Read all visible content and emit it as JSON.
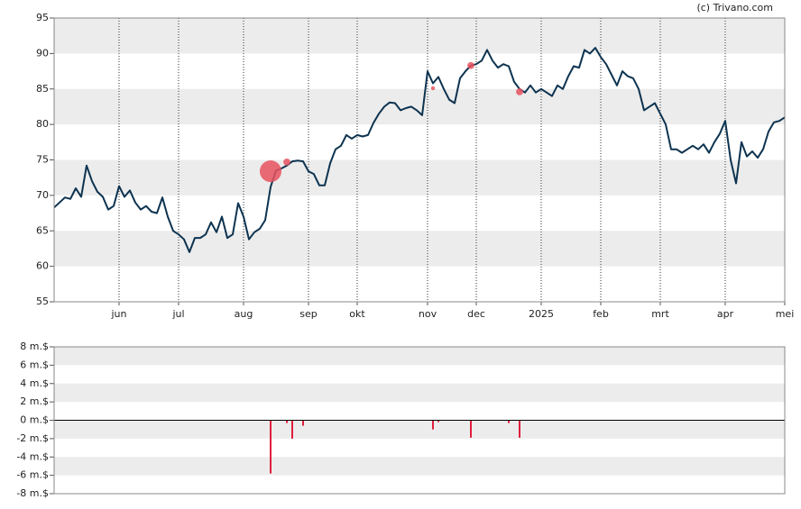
{
  "watermark": "(c) Trivano.com",
  "chart_data": [
    {
      "type": "line",
      "color": "#0d3350",
      "ylim": [
        55,
        95
      ],
      "yticks": [
        55,
        60,
        65,
        70,
        75,
        80,
        85,
        90,
        95
      ],
      "bands": true,
      "categories": [
        null,
        null,
        null,
        null,
        null,
        null,
        null,
        null,
        null,
        null,
        null,
        null,
        "jun",
        null,
        null,
        null,
        null,
        null,
        null,
        null,
        null,
        null,
        null,
        "jul",
        null,
        null,
        null,
        null,
        null,
        null,
        null,
        null,
        null,
        null,
        null,
        "aug",
        null,
        null,
        null,
        null,
        null,
        null,
        null,
        null,
        null,
        null,
        null,
        "sep",
        null,
        null,
        null,
        null,
        null,
        null,
        null,
        null,
        "okt",
        null,
        null,
        null,
        null,
        null,
        null,
        null,
        null,
        null,
        null,
        null,
        null,
        "nov",
        null,
        null,
        null,
        null,
        null,
        null,
        null,
        null,
        "dec",
        null,
        null,
        null,
        null,
        null,
        null,
        null,
        null,
        null,
        null,
        null,
        "2025",
        null,
        null,
        null,
        null,
        null,
        null,
        null,
        null,
        null,
        null,
        "feb",
        null,
        null,
        null,
        null,
        null,
        null,
        null,
        null,
        null,
        null,
        "mrt",
        null,
        null,
        null,
        null,
        null,
        null,
        null,
        null,
        null,
        null,
        null,
        "apr",
        null,
        null,
        null,
        null,
        null,
        null,
        null,
        null,
        null,
        null,
        "mei"
      ],
      "values": [
        68.3,
        69.0,
        69.7,
        69.5,
        71.0,
        69.8,
        74.2,
        72.0,
        70.5,
        69.8,
        68.0,
        68.5,
        71.3,
        69.8,
        70.7,
        69.0,
        68.0,
        68.5,
        67.7,
        67.5,
        69.7,
        67.0,
        65.0,
        64.5,
        63.8,
        62.0,
        64.0,
        64.0,
        64.5,
        66.2,
        64.8,
        67.0,
        64.0,
        64.5,
        68.9,
        67.0,
        63.8,
        64.8,
        65.3,
        66.5,
        71.2,
        73.5,
        73.8,
        74.2,
        74.8,
        74.9,
        74.8,
        73.4,
        73.0,
        71.4,
        71.4,
        74.5,
        76.5,
        77.0,
        78.5,
        78.0,
        78.5,
        78.3,
        78.5,
        80.2,
        81.5,
        82.5,
        83.1,
        83.0,
        82.0,
        82.3,
        82.5,
        82.0,
        81.3,
        87.5,
        85.8,
        86.7,
        85.0,
        83.5,
        83.0,
        86.5,
        87.5,
        88.3,
        88.5,
        89.0,
        90.5,
        89.0,
        88.0,
        88.5,
        88.2,
        86.0,
        85.0,
        84.5,
        85.5,
        84.5,
        85.0,
        84.5,
        84.0,
        85.5,
        85.0,
        86.8,
        88.2,
        88.0,
        90.5,
        90.0,
        90.8,
        89.5,
        88.5,
        87.0,
        85.5,
        87.5,
        86.8,
        86.5,
        85.0,
        82.0,
        82.5,
        83.0,
        81.5,
        80.0,
        76.5,
        76.5,
        76.0,
        76.5,
        77.0,
        76.5,
        77.2,
        76.0,
        77.5,
        78.7,
        80.5,
        75.0,
        71.7,
        77.5,
        75.5,
        76.2,
        75.3,
        76.5,
        79.0,
        80.3,
        80.5,
        81.0
      ],
      "bubbles": {
        "color": "#e8525f",
        "values": [
          null,
          null,
          null,
          null,
          null,
          null,
          null,
          null,
          null,
          null,
          null,
          null,
          null,
          null,
          null,
          null,
          null,
          null,
          null,
          null,
          null,
          null,
          null,
          null,
          null,
          null,
          null,
          null,
          null,
          null,
          null,
          null,
          null,
          null,
          null,
          null,
          null,
          null,
          null,
          null,
          73.4,
          null,
          null,
          74.7,
          null,
          null,
          null,
          null,
          null,
          null,
          null,
          null,
          null,
          null,
          null,
          null,
          null,
          null,
          null,
          null,
          null,
          null,
          null,
          null,
          null,
          null,
          null,
          null,
          null,
          null,
          85.1,
          null,
          null,
          null,
          null,
          null,
          null,
          88.3,
          null,
          null,
          null,
          null,
          null,
          null,
          null,
          null,
          84.6,
          null,
          null,
          null,
          null,
          null,
          null,
          null,
          null,
          null,
          null,
          null,
          null,
          null,
          null,
          null,
          null,
          null,
          null,
          null,
          null,
          null,
          null,
          null,
          null,
          null,
          null,
          null,
          null,
          null,
          null,
          null,
          null,
          null,
          null,
          null,
          null,
          null,
          null,
          null,
          null,
          null,
          null,
          null,
          null,
          null,
          null,
          null,
          null,
          null
        ],
        "sizes": [
          null,
          null,
          null,
          null,
          null,
          null,
          null,
          null,
          null,
          null,
          null,
          null,
          null,
          null,
          null,
          null,
          null,
          null,
          null,
          null,
          null,
          null,
          null,
          null,
          null,
          null,
          null,
          null,
          null,
          null,
          null,
          null,
          null,
          null,
          null,
          null,
          null,
          null,
          null,
          null,
          5.8,
          null,
          null,
          0.6,
          null,
          null,
          null,
          null,
          null,
          null,
          null,
          null,
          null,
          null,
          null,
          null,
          null,
          null,
          null,
          null,
          null,
          null,
          null,
          null,
          null,
          null,
          null,
          null,
          null,
          null,
          0.2,
          null,
          null,
          null,
          null,
          null,
          null,
          0.6,
          null,
          null,
          null,
          null,
          null,
          null,
          null,
          null,
          0.6,
          null,
          null,
          null,
          null,
          null,
          null,
          null,
          null,
          null,
          null,
          null,
          null,
          null,
          null,
          null,
          null,
          null,
          null,
          null,
          null,
          null,
          null,
          null,
          null,
          null,
          null,
          null,
          null,
          null,
          null,
          null,
          null,
          null,
          null,
          null,
          null,
          null,
          null,
          null,
          null,
          null,
          null,
          null,
          null,
          null,
          null,
          null,
          null,
          null
        ]
      }
    },
    {
      "type": "bar",
      "color": "#e01e3c",
      "ylim": [
        -8,
        8
      ],
      "bands": true,
      "yticks": [
        {
          "value": -8,
          "label": "-8 m.$"
        },
        {
          "value": -6,
          "label": "-6 m.$"
        },
        {
          "value": -4,
          "label": "-4 m.$"
        },
        {
          "value": -2,
          "label": "-2 m.$"
        },
        {
          "value": 0,
          "label": "0 m.$"
        },
        {
          "value": 2,
          "label": "2 m.$"
        },
        {
          "value": 4,
          "label": "4 m.$"
        },
        {
          "value": 6,
          "label": "6 m.$"
        },
        {
          "value": 8,
          "label": "8 m.$"
        }
      ],
      "values": [
        null,
        null,
        null,
        null,
        null,
        null,
        null,
        null,
        null,
        null,
        null,
        null,
        null,
        null,
        null,
        null,
        null,
        null,
        null,
        null,
        null,
        null,
        null,
        null,
        null,
        null,
        null,
        null,
        null,
        null,
        null,
        null,
        null,
        null,
        null,
        null,
        null,
        null,
        null,
        null,
        -5.8,
        null,
        null,
        -0.3,
        -2.0,
        null,
        -0.6,
        null,
        null,
        null,
        null,
        null,
        null,
        null,
        null,
        null,
        null,
        null,
        null,
        null,
        null,
        null,
        null,
        null,
        null,
        null,
        null,
        null,
        null,
        null,
        -1.0,
        -0.2,
        null,
        null,
        null,
        null,
        null,
        -1.9,
        null,
        null,
        null,
        null,
        null,
        null,
        -0.3,
        null,
        -1.9,
        null,
        null,
        null,
        null,
        null,
        null,
        null,
        null,
        null,
        null,
        null,
        null,
        null,
        null,
        null,
        null,
        null,
        null,
        null,
        null,
        null,
        null,
        null,
        null,
        null,
        null,
        null,
        null,
        null,
        null,
        null,
        null,
        null,
        null,
        null,
        null,
        null,
        null,
        null,
        null,
        null,
        null,
        null,
        null,
        null,
        null,
        null,
        null,
        null
      ]
    }
  ]
}
